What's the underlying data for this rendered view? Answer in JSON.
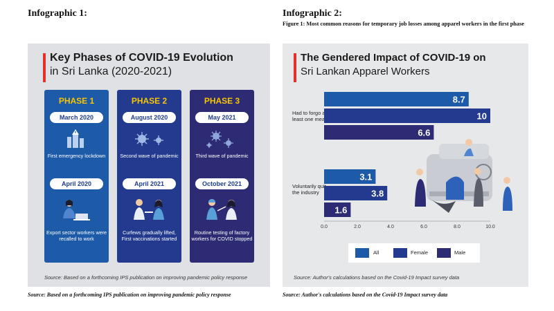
{
  "left": {
    "heading": "Infographic 1:",
    "title_bold": "Key Phases of COVID-19 Evolution",
    "title_reg": "in Sri Lanka (2020-2021)",
    "phases": [
      {
        "label": "PHASE 1",
        "date1": "March 2020",
        "desc1": "First emergency lockdown",
        "date2": "April 2020",
        "desc2": "Export sector workers were recalled to work"
      },
      {
        "label": "PHASE 2",
        "date1": "August 2020",
        "desc1": "Second wave of pandemic",
        "date2": "April 2021",
        "desc2": "Curfews gradually lifted, First vaccinations started"
      },
      {
        "label": "PHASE 3",
        "date1": "May 2021",
        "desc1": "Third wave of pandemic",
        "date2": "October 2021",
        "desc2": "Routine testing of factory workers for COVID stopped"
      }
    ],
    "source": "Source: Based on a forthcoming IPS publication on improving pandemic policy response",
    "caption": "Source: Based on a forthcoming IPS publication on improving pandemic policy response",
    "colors": {
      "phase1": "#1d5aa8",
      "phase2": "#233a8f",
      "phase3": "#2c2b73",
      "accent": "#e5302b",
      "phase_label": "#f7c600"
    }
  },
  "right": {
    "heading": "Infographic 2:",
    "subtitle": "Figure 1: Most common reasons for temporary job losses among apparel workers in the first phase",
    "title_line1": "The Gendered Impact of COVID-19 on",
    "title_line2": "Sri Lankan Apparel Workers",
    "source": "Source: Author's calculations based on the Covid-19 Impact survey data",
    "caption": "Source: Author's calculations based on the Covid-19 Impact survey data",
    "legend": [
      "All",
      "Female",
      "Male"
    ]
  },
  "chart_data": {
    "type": "bar",
    "orientation": "horizontal",
    "categories": [
      "Had to forgo at least one meal",
      "Voluntarily quit the industry"
    ],
    "series": [
      {
        "name": "All",
        "values": [
          8.7,
          3.1
        ],
        "color": "#1d5aa8"
      },
      {
        "name": "Female",
        "values": [
          10,
          3.8
        ],
        "color": "#233a8f"
      },
      {
        "name": "Male",
        "values": [
          6.6,
          1.6
        ],
        "color": "#2c2b73"
      }
    ],
    "x_ticks": [
      "0.0",
      "2.0",
      "4.0",
      "6.0",
      "8.0",
      "10.0"
    ],
    "xlim": [
      0,
      10
    ],
    "legend_position": "bottom"
  }
}
